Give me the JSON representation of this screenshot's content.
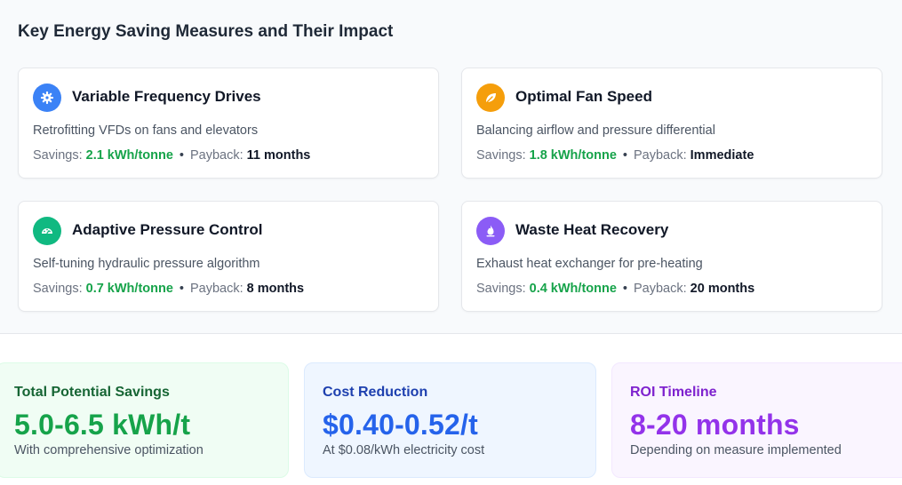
{
  "section": {
    "title": "Key Energy Saving Measures and Their Impact"
  },
  "labels": {
    "savings": "Savings:",
    "payback": "Payback:",
    "separator": "•"
  },
  "measures": [
    {
      "icon": "gear-icon",
      "color": "#3b82f6",
      "title": "Variable Frequency Drives",
      "description": "Retrofitting VFDs on fans and elevators",
      "savings": "2.1 kWh/tonne",
      "payback": "11 months"
    },
    {
      "icon": "leaf-icon",
      "color": "#f59e0b",
      "title": "Optimal Fan Speed",
      "description": "Balancing airflow and pressure differential",
      "savings": "1.8 kWh/tonne",
      "payback": "Immediate"
    },
    {
      "icon": "gauge-icon",
      "color": "#10b981",
      "title": "Adaptive Pressure Control",
      "description": "Self-tuning hydraulic pressure algorithm",
      "savings": "0.7 kWh/tonne",
      "payback": "8 months"
    },
    {
      "icon": "flame-icon",
      "color": "#8b5cf6",
      "title": "Waste Heat Recovery",
      "description": "Exhaust heat exchanger for pre-heating",
      "savings": "0.4 kWh/tonne",
      "payback": "20 months"
    }
  ],
  "summary": [
    {
      "label": "Total Potential Savings",
      "value": "5.0-6.5 kWh/t",
      "sub": "With comprehensive optimization",
      "accent": "#16a34a",
      "label_color": "#166534",
      "bg": "#f0fdf4",
      "border": "#dcfce7"
    },
    {
      "label": "Cost Reduction",
      "value": "$0.40-0.52/t",
      "sub": "At $0.08/kWh electricity cost",
      "accent": "#2563eb",
      "label_color": "#1e40af",
      "bg": "#eff6ff",
      "border": "#dbeafe"
    },
    {
      "label": "ROI Timeline",
      "value": "8-20 months",
      "sub": "Depending on measure implemented",
      "accent": "#9333ea",
      "label_color": "#7e22ce",
      "bg": "#faf5ff",
      "border": "#f3e8ff"
    }
  ]
}
